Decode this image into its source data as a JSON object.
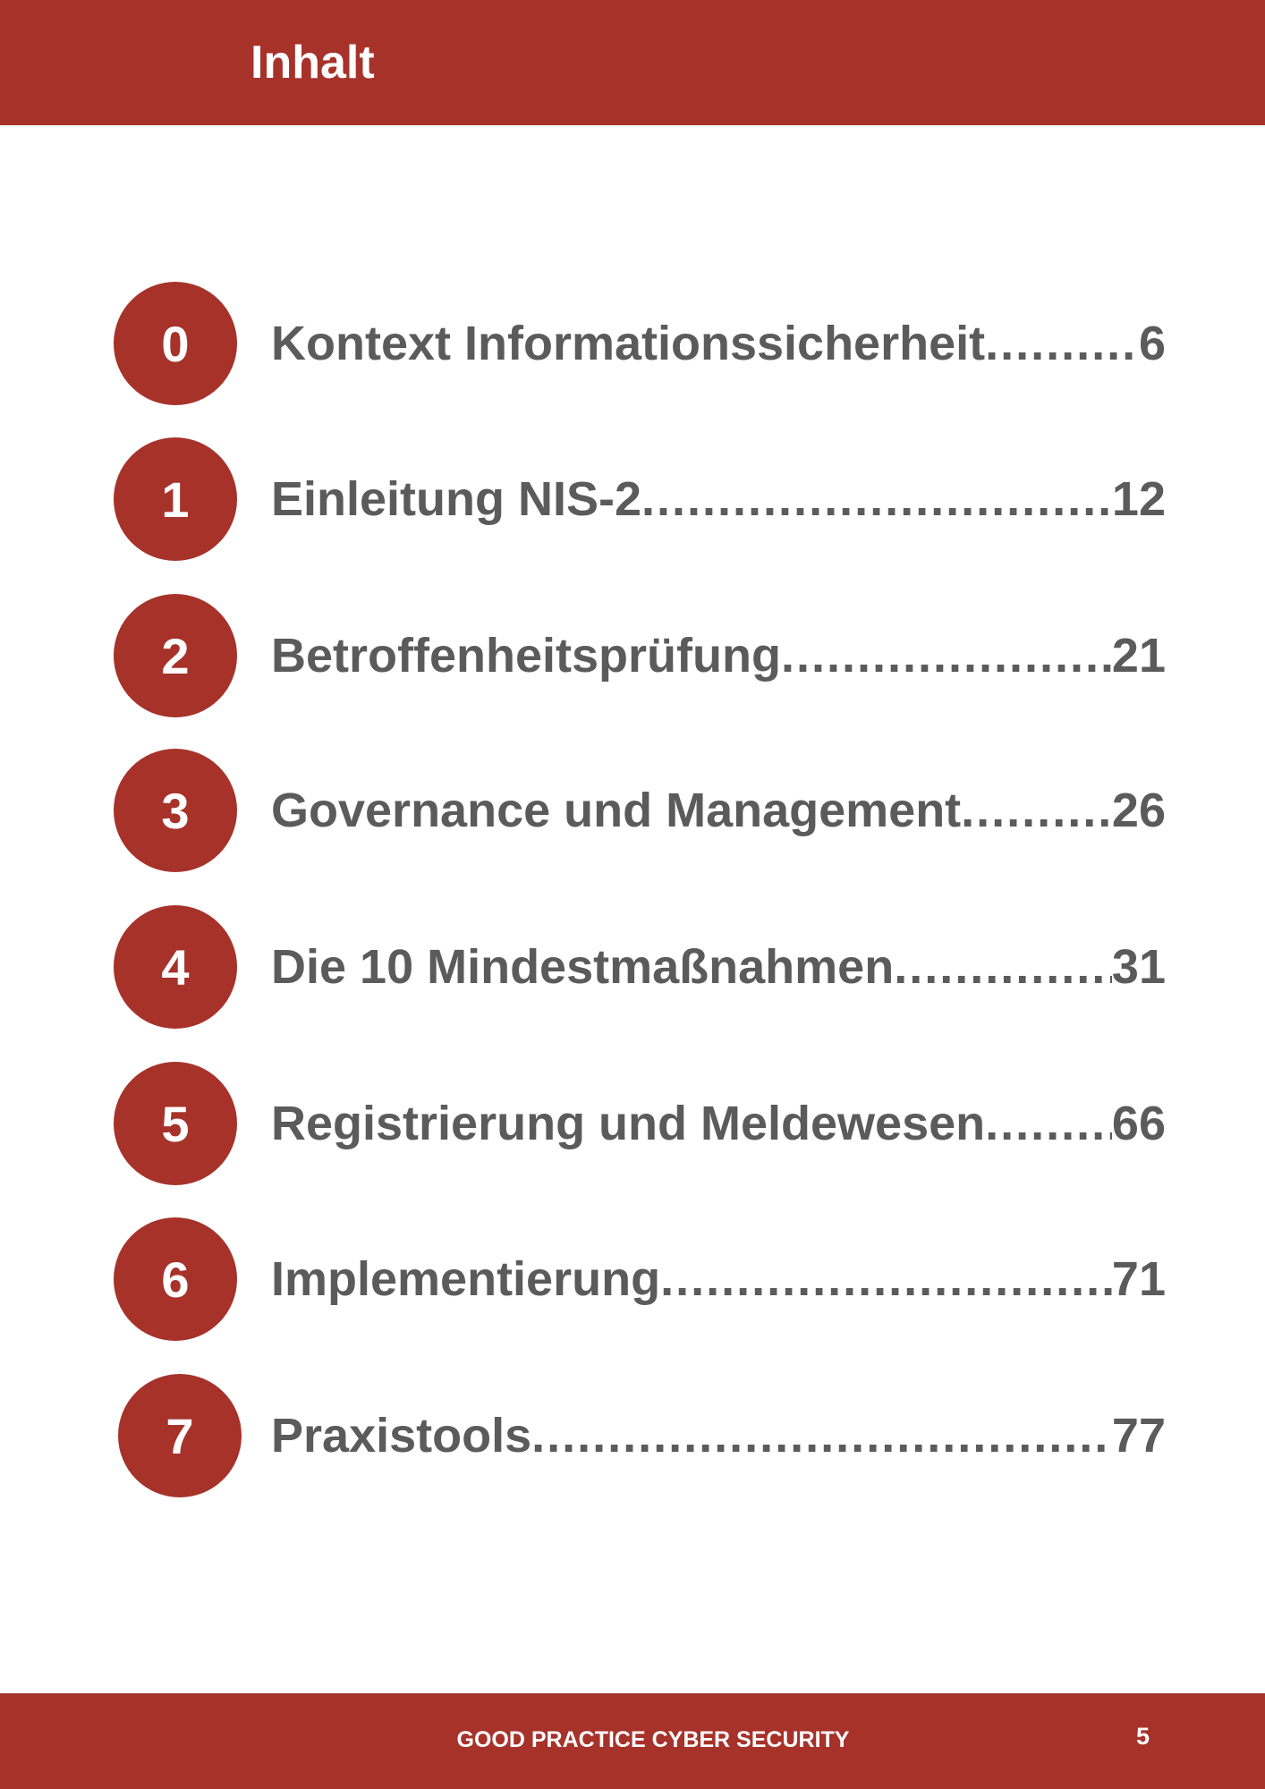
{
  "header": {
    "title": "Inhalt"
  },
  "toc": {
    "entries": [
      {
        "number": 0,
        "title": "Kontext Informationssicherheit",
        "page": 6
      },
      {
        "number": 1,
        "title": "Einleitung NIS-2",
        "page": 12
      },
      {
        "number": 2,
        "title": "Betroffenheitsprüfung",
        "page": 21
      },
      {
        "number": 3,
        "title": "Governance und Management",
        "page": 26
      },
      {
        "number": 4,
        "title": "Die 10 Mindestmaßnahmen",
        "page": 31
      },
      {
        "number": 5,
        "title": "Registrierung und Meldewesen",
        "page": 66
      },
      {
        "number": 6,
        "title": "Implementierung",
        "page": 71
      },
      {
        "number": 7,
        "title": "Praxistools",
        "page": 77
      }
    ]
  },
  "footer": {
    "text": "GOOD PRACTICE CYBER SECURITY",
    "page_number": 5
  }
}
